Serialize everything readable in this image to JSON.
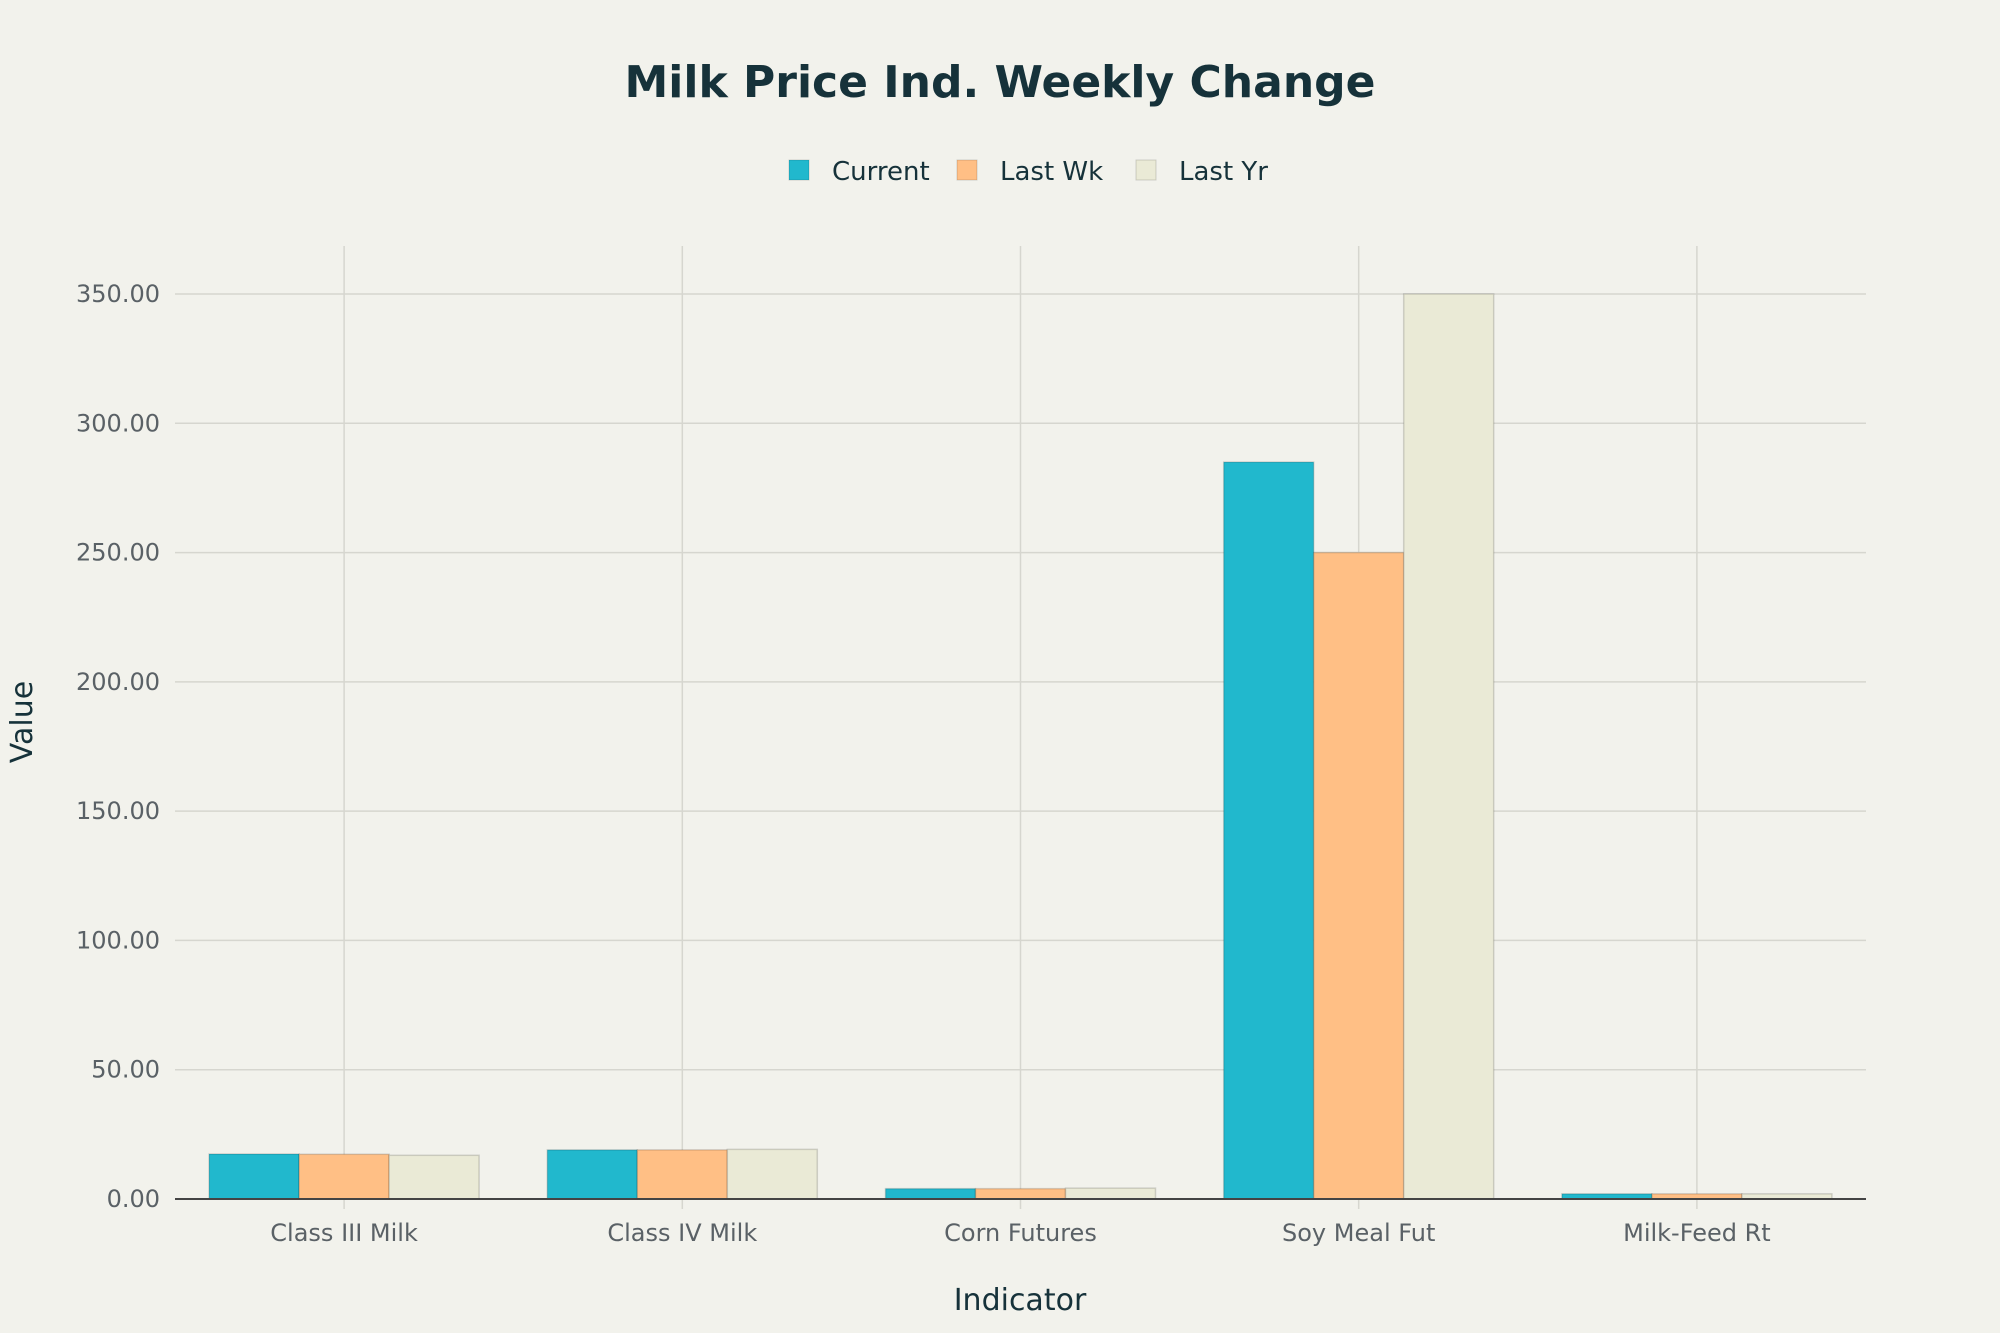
{
  "chart_data": {
    "type": "bar",
    "title": "Milk Price Ind. Weekly Change",
    "xlabel": "Indicator",
    "ylabel": "Value",
    "categories": [
      "Class III Milk",
      "Class IV Milk",
      "Corn Futures",
      "Soy Meal Fut",
      "Milk-Feed Rt"
    ],
    "series": [
      {
        "name": "Current",
        "color": "#21b8cd",
        "values": [
          17.4,
          19.0,
          4.0,
          285.0,
          2.0
        ]
      },
      {
        "name": "Last Wk",
        "color": "#ffbf85",
        "values": [
          17.3,
          19.0,
          4.0,
          250.0,
          2.0
        ]
      },
      {
        "name": "Last Yr",
        "color": "#eaead6",
        "values": [
          16.9,
          19.2,
          4.2,
          350.0,
          2.0
        ]
      }
    ],
    "ylim": [
      0,
      368
    ],
    "yticks": [
      "0.00",
      "50.00",
      "100.00",
      "150.00",
      "200.00",
      "250.00",
      "300.00",
      "350.00"
    ],
    "grid": true,
    "legend_position": "top-center"
  }
}
